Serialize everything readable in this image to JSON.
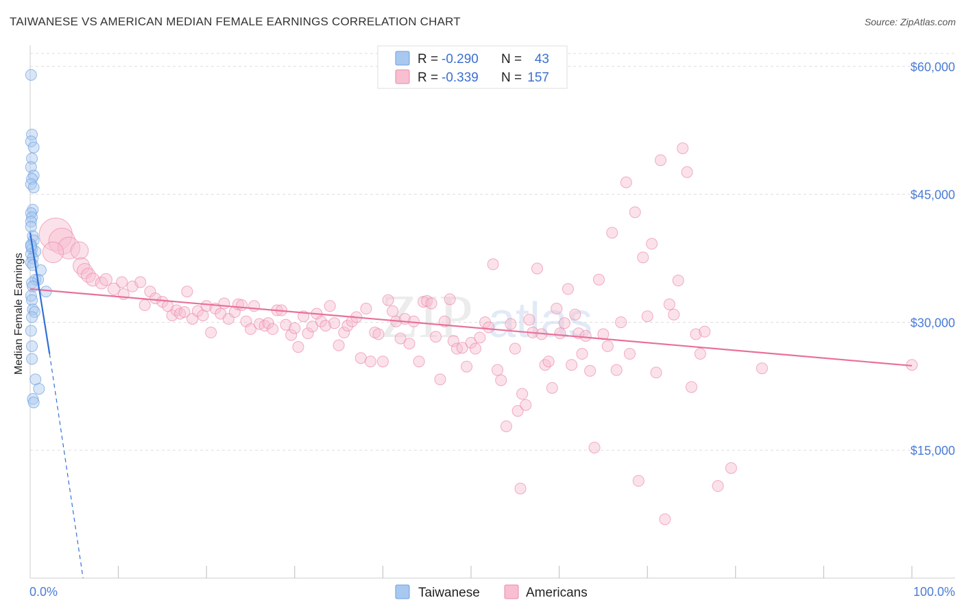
{
  "title": "TAIWANESE VS AMERICAN MEDIAN FEMALE EARNINGS CORRELATION CHART",
  "source": "Source: ZipAtlas.com",
  "watermark": "ZIPatlas",
  "colors": {
    "taiwanese_fill": "#a9c8f0",
    "taiwanese_stroke": "#6b9fe0",
    "taiwanese_line": "#2f6fd6",
    "americans_fill": "#f7bfd0",
    "americans_stroke": "#ec8aaa",
    "americans_line": "#e8709a",
    "tick_text": "#4a7cd6",
    "grid": "#dddddd"
  },
  "legend": {
    "rows": [
      {
        "r_label": "R =",
        "r_value": "-0.290",
        "n_label": "N =",
        "n_value": "43",
        "series": "Taiwanese"
      },
      {
        "r_label": "R =",
        "r_value": "-0.339",
        "n_label": "N =",
        "n_value": "157",
        "series": "Americans"
      }
    ]
  },
  "bottom_legend": [
    "Taiwanese",
    "Americans"
  ],
  "chart_data": {
    "type": "scatter",
    "title": "TAIWANESE VS AMERICAN MEDIAN FEMALE EARNINGS CORRELATION CHART",
    "xlabel": "",
    "ylabel": "Median Female Earnings",
    "xlim": [
      0,
      100
    ],
    "ylim": [
      0,
      62000
    ],
    "x_tick_labels": [
      "0.0%",
      "100.0%"
    ],
    "y_ticks": [
      15000,
      30000,
      45000,
      60000
    ],
    "y_tick_labels": [
      "$15,000",
      "$30,000",
      "$45,000",
      "$60,000"
    ],
    "grid": true,
    "series": [
      {
        "name": "Taiwanese",
        "R": -0.29,
        "N": 43,
        "trend": {
          "x0": 0.0,
          "y0": 40500,
          "x1": 2.2,
          "y1": 26300,
          "dash_x1": 6.0,
          "dash_y1": 0
        },
        "points": [
          [
            0.1,
            59000,
            1
          ],
          [
            0.2,
            52000,
            1
          ],
          [
            0.1,
            51200,
            1
          ],
          [
            0.4,
            50500,
            1
          ],
          [
            0.2,
            49200,
            1
          ],
          [
            0.1,
            48200,
            1
          ],
          [
            0.4,
            47200,
            1
          ],
          [
            0.2,
            46800,
            1
          ],
          [
            0.1,
            46200,
            1
          ],
          [
            0.4,
            45800,
            1
          ],
          [
            0.3,
            43200,
            1
          ],
          [
            0.1,
            42800,
            1
          ],
          [
            0.2,
            42300,
            1
          ],
          [
            0.1,
            41800,
            1
          ],
          [
            0.1,
            41200,
            1
          ],
          [
            0.3,
            40100,
            1
          ],
          [
            0.4,
            39600,
            1
          ],
          [
            0.1,
            39100,
            1
          ],
          [
            0.2,
            38600,
            1
          ],
          [
            0.6,
            38300,
            1
          ],
          [
            0.1,
            38000,
            1
          ],
          [
            0.3,
            37500,
            1
          ],
          [
            0.1,
            37000,
            1
          ],
          [
            0.3,
            36700,
            1
          ],
          [
            1.2,
            36100,
            1
          ],
          [
            0.6,
            35000,
            1
          ],
          [
            0.9,
            35000,
            1
          ],
          [
            0.2,
            34600,
            1
          ],
          [
            0.3,
            34200,
            1
          ],
          [
            1.8,
            33600,
            1
          ],
          [
            0.1,
            33100,
            1
          ],
          [
            0.2,
            32600,
            1
          ],
          [
            0.3,
            31500,
            1
          ],
          [
            0.5,
            31200,
            1
          ],
          [
            0.2,
            30600,
            1
          ],
          [
            0.1,
            29000,
            1
          ],
          [
            0.2,
            27200,
            1
          ],
          [
            0.2,
            25700,
            1
          ],
          [
            0.6,
            23300,
            1
          ],
          [
            1.0,
            22200,
            1
          ],
          [
            0.3,
            21000,
            1
          ],
          [
            0.4,
            20600,
            1
          ],
          [
            0.1,
            38900,
            1
          ]
        ]
      },
      {
        "name": "Americans",
        "R": -0.339,
        "N": 157,
        "trend": {
          "x0": 0.0,
          "y0": 33900,
          "x1": 100.0,
          "y1": 24900
        },
        "points": [
          [
            2.9,
            40300,
            3
          ],
          [
            3.6,
            39500,
            2.4
          ],
          [
            4.4,
            38700,
            2
          ],
          [
            2.6,
            38200,
            1.9
          ],
          [
            5.6,
            38400,
            1.6
          ],
          [
            5.8,
            36600,
            1.5
          ],
          [
            6.2,
            36000,
            1.4
          ],
          [
            6.6,
            35500,
            1.3
          ],
          [
            7.1,
            35000,
            1.2
          ],
          [
            8.1,
            34600,
            1.1
          ],
          [
            8.6,
            35000,
            1.1
          ],
          [
            9.5,
            33900,
            1.1
          ],
          [
            10.4,
            34700,
            1
          ],
          [
            10.6,
            33300,
            1
          ],
          [
            11.6,
            34200,
            1
          ],
          [
            12.5,
            34700,
            1
          ],
          [
            13.0,
            32000,
            1
          ],
          [
            13.6,
            33600,
            1
          ],
          [
            14.2,
            32800,
            1
          ],
          [
            15.0,
            32400,
            1
          ],
          [
            15.6,
            31900,
            1
          ],
          [
            16.1,
            30800,
            1
          ],
          [
            16.6,
            31400,
            1
          ],
          [
            17.0,
            31000,
            1
          ],
          [
            17.5,
            31200,
            1
          ],
          [
            17.8,
            33600,
            1
          ],
          [
            18.4,
            30400,
            1
          ],
          [
            19.0,
            31300,
            1
          ],
          [
            19.6,
            30800,
            1
          ],
          [
            20.0,
            31900,
            1
          ],
          [
            20.5,
            28800,
            1
          ],
          [
            21.0,
            31600,
            1
          ],
          [
            21.6,
            31000,
            1
          ],
          [
            22.0,
            32200,
            1
          ],
          [
            22.5,
            30400,
            1
          ],
          [
            23.2,
            31200,
            1
          ],
          [
            23.6,
            32100,
            1
          ],
          [
            24.0,
            32000,
            1
          ],
          [
            24.5,
            30100,
            1
          ],
          [
            25.0,
            29200,
            1
          ],
          [
            25.4,
            31900,
            1
          ],
          [
            26.0,
            29800,
            1
          ],
          [
            26.6,
            29600,
            1
          ],
          [
            27.0,
            29900,
            1
          ],
          [
            27.5,
            29200,
            1
          ],
          [
            28.0,
            31400,
            1
          ],
          [
            28.5,
            31400,
            1
          ],
          [
            29.0,
            29700,
            1
          ],
          [
            29.6,
            28500,
            1
          ],
          [
            30.0,
            29300,
            1
          ],
          [
            30.4,
            27100,
            1
          ],
          [
            31.0,
            30700,
            1
          ],
          [
            31.5,
            28700,
            1
          ],
          [
            32.0,
            29500,
            1
          ],
          [
            32.5,
            31000,
            1
          ],
          [
            33.0,
            30100,
            1
          ],
          [
            33.5,
            29600,
            1
          ],
          [
            34.0,
            31900,
            1
          ],
          [
            34.5,
            29900,
            1
          ],
          [
            35.0,
            27300,
            1
          ],
          [
            35.6,
            28800,
            1
          ],
          [
            36.0,
            29600,
            1
          ],
          [
            36.5,
            30100,
            1
          ],
          [
            37.0,
            30600,
            1
          ],
          [
            37.5,
            25800,
            1
          ],
          [
            38.1,
            31600,
            1
          ],
          [
            38.6,
            25400,
            1
          ],
          [
            39.1,
            28800,
            1
          ],
          [
            39.5,
            28600,
            1
          ],
          [
            40.0,
            25400,
            1
          ],
          [
            40.6,
            32600,
            1
          ],
          [
            41.1,
            31300,
            1
          ],
          [
            41.5,
            30100,
            1
          ],
          [
            42.0,
            28100,
            1
          ],
          [
            42.5,
            30400,
            1
          ],
          [
            43.0,
            27500,
            1
          ],
          [
            43.5,
            30100,
            1
          ],
          [
            44.1,
            25400,
            1
          ],
          [
            44.6,
            32400,
            1
          ],
          [
            45.0,
            32500,
            1
          ],
          [
            45.5,
            32200,
            1
          ],
          [
            46.0,
            28300,
            1
          ],
          [
            46.5,
            23300,
            1
          ],
          [
            47.0,
            30100,
            1
          ],
          [
            47.6,
            32700,
            1
          ],
          [
            48.0,
            27800,
            1
          ],
          [
            48.4,
            26900,
            1
          ],
          [
            49.0,
            27000,
            1
          ],
          [
            49.5,
            24800,
            1
          ],
          [
            50.0,
            27600,
            1
          ],
          [
            50.5,
            26900,
            1
          ],
          [
            51.0,
            28200,
            1
          ],
          [
            51.6,
            30000,
            1
          ],
          [
            52.0,
            29400,
            1
          ],
          [
            52.5,
            36800,
            1
          ],
          [
            53.0,
            24400,
            1
          ],
          [
            53.4,
            23200,
            1
          ],
          [
            54.0,
            17800,
            1
          ],
          [
            54.5,
            29800,
            1
          ],
          [
            55.0,
            26900,
            1
          ],
          [
            55.3,
            19600,
            1
          ],
          [
            55.6,
            10500,
            1
          ],
          [
            55.8,
            21600,
            1
          ],
          [
            56.2,
            20300,
            1
          ],
          [
            56.6,
            30300,
            1
          ],
          [
            57.0,
            28800,
            1
          ],
          [
            57.5,
            36300,
            1
          ],
          [
            58.0,
            28600,
            1
          ],
          [
            58.4,
            25000,
            1
          ],
          [
            58.8,
            25400,
            1
          ],
          [
            59.2,
            22300,
            1
          ],
          [
            59.7,
            31600,
            1
          ],
          [
            60.1,
            28700,
            1
          ],
          [
            60.6,
            29900,
            1
          ],
          [
            61.0,
            33900,
            1
          ],
          [
            61.4,
            25000,
            1
          ],
          [
            61.8,
            30900,
            1
          ],
          [
            62.2,
            28700,
            1
          ],
          [
            62.6,
            26300,
            1
          ],
          [
            63.0,
            28400,
            1
          ],
          [
            63.5,
            24300,
            1
          ],
          [
            64.0,
            15300,
            1
          ],
          [
            64.5,
            35000,
            1
          ],
          [
            65.0,
            28600,
            1
          ],
          [
            65.5,
            27200,
            1
          ],
          [
            66.0,
            40500,
            1
          ],
          [
            66.5,
            24400,
            1
          ],
          [
            67.0,
            30000,
            1
          ],
          [
            67.6,
            46400,
            1
          ],
          [
            68.0,
            26300,
            1
          ],
          [
            68.6,
            42900,
            1
          ],
          [
            69.0,
            11400,
            1
          ],
          [
            69.5,
            37600,
            1
          ],
          [
            70.0,
            30700,
            1
          ],
          [
            70.5,
            39200,
            1
          ],
          [
            71.0,
            24100,
            1
          ],
          [
            71.5,
            49000,
            1
          ],
          [
            72.0,
            6900,
            1
          ],
          [
            72.5,
            32100,
            1
          ],
          [
            73.0,
            30900,
            1
          ],
          [
            73.5,
            34900,
            1
          ],
          [
            74.0,
            50400,
            1
          ],
          [
            74.5,
            47600,
            1
          ],
          [
            75.0,
            22400,
            1
          ],
          [
            75.5,
            28600,
            1
          ],
          [
            76.0,
            26300,
            1
          ],
          [
            76.5,
            28900,
            1
          ],
          [
            78.0,
            10800,
            1
          ],
          [
            79.5,
            12900,
            1
          ],
          [
            83.0,
            24600,
            1
          ],
          [
            100.0,
            25000,
            1
          ]
        ]
      }
    ]
  }
}
